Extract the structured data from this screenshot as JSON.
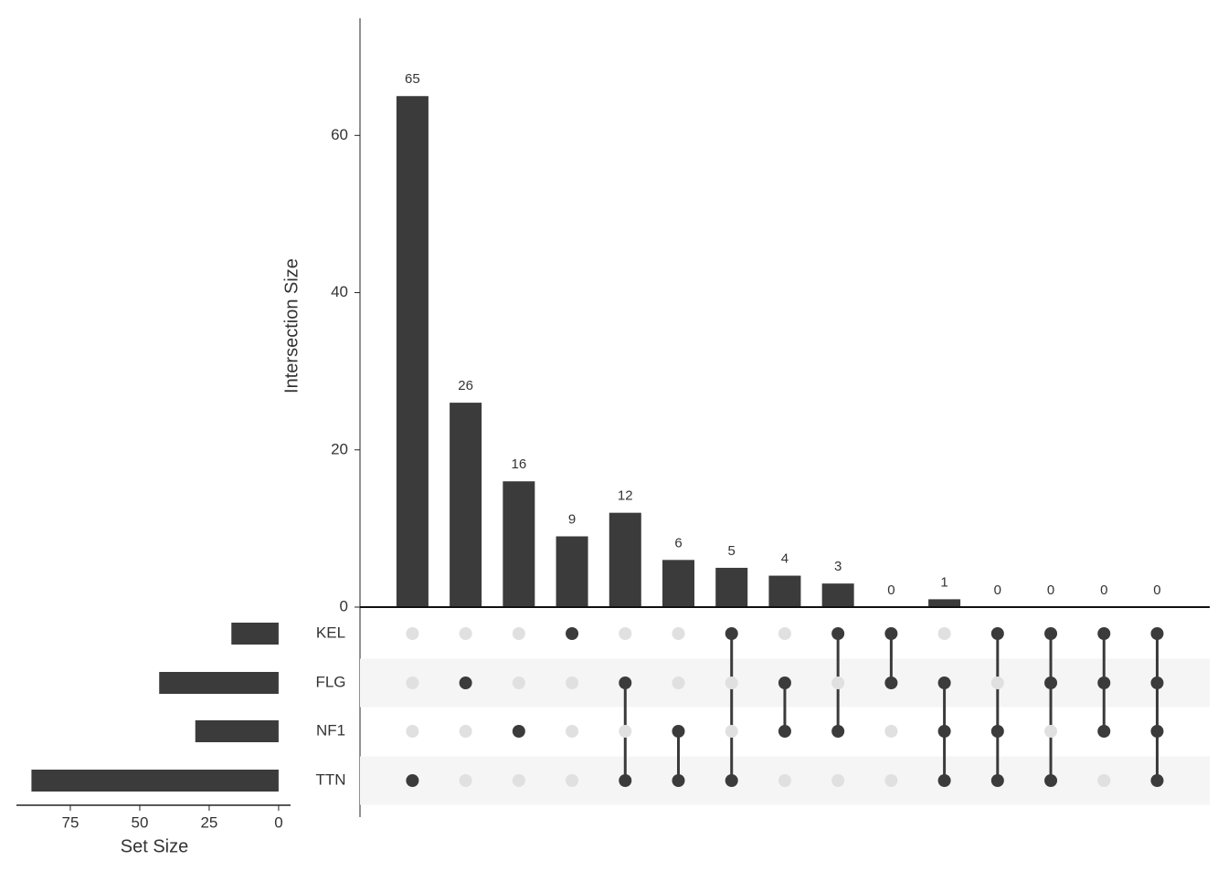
{
  "chart_data": {
    "type": "upset",
    "y_label": "Intersection Size",
    "x_label": "Set Size",
    "sets": [
      "KEL",
      "FLG",
      "NF1",
      "TTN"
    ],
    "set_sizes": [
      17,
      43,
      30,
      89
    ],
    "set_size_xlim": [
      94.4,
      -4.3
    ],
    "set_size_xticks": [
      75,
      50,
      25,
      0
    ],
    "values": [
      65,
      26,
      16,
      9,
      12,
      6,
      5,
      4,
      3,
      0,
      1,
      0,
      0,
      0,
      0
    ],
    "matrix": [
      [
        0,
        0,
        0,
        1
      ],
      [
        0,
        1,
        0,
        0
      ],
      [
        0,
        0,
        1,
        0
      ],
      [
        1,
        0,
        0,
        0
      ],
      [
        0,
        1,
        0,
        1
      ],
      [
        0,
        0,
        1,
        1
      ],
      [
        1,
        0,
        0,
        1
      ],
      [
        0,
        1,
        1,
        0
      ],
      [
        1,
        0,
        1,
        0
      ],
      [
        1,
        1,
        0,
        0
      ],
      [
        0,
        1,
        1,
        1
      ],
      [
        1,
        0,
        1,
        1
      ],
      [
        1,
        1,
        0,
        1
      ],
      [
        1,
        1,
        1,
        0
      ],
      [
        1,
        1,
        1,
        1
      ]
    ],
    "ylim": [
      0,
      74.9
    ],
    "yticks": [
      0,
      20,
      40,
      60
    ],
    "color": "#3b3b3b",
    "inactive_color": "#e0e0e0",
    "stripe_color": "#f5f5f5"
  }
}
